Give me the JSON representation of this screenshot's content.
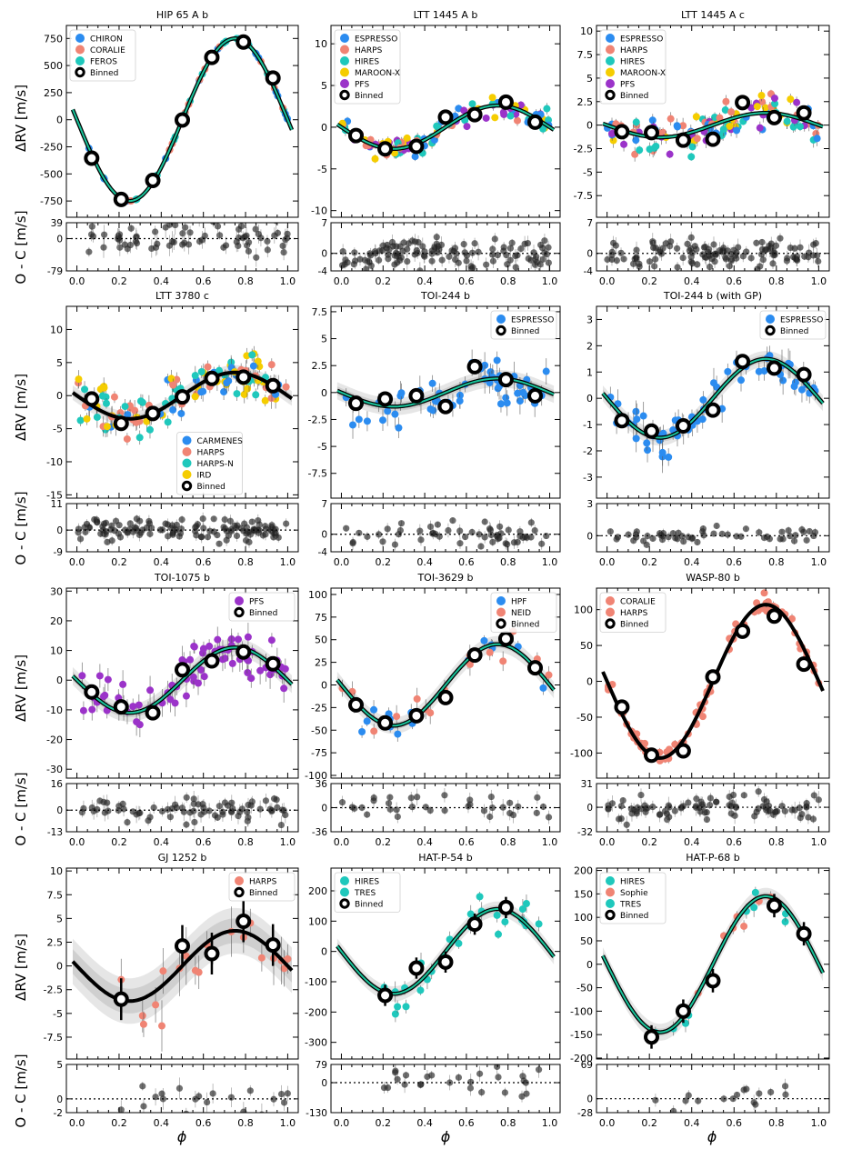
{
  "figure": {
    "y_label_top": "ΔRV [m/s]",
    "y_label_res": "O - C [m/s]",
    "x_label": "ϕ"
  },
  "colors": {
    "CHIRON": "#2b8cf0",
    "CORALIE": "#f08474",
    "FEROS": "#1fc8bc",
    "ESPRESSO": "#2b8cf0",
    "HARPS": "#f08474",
    "HIRES": "#1fc8bc",
    "MAROON-X": "#f5cd00",
    "PFS": "#9b33c9",
    "CARMENES": "#2b8cf0",
    "HARPS-N": "#1fc8bc",
    "IRD": "#f5cd00",
    "HPF": "#2b8cf0",
    "NEID": "#f08474",
    "TRES": "#1fc8bc",
    "Sophie": "#f08474",
    "model_line": "#000000",
    "model_fill": "#19c39a"
  },
  "chart_data": [
    {
      "type": "scatter",
      "title": "HIP 65 A b",
      "K": 750,
      "phase": 0.5,
      "model": "thin",
      "bands": [
        0,
        0
      ],
      "ylim": [
        -900,
        870
      ],
      "yticks": [
        -750,
        -500,
        -250,
        0,
        250,
        500,
        750
      ],
      "rlim": [
        -79,
        39
      ],
      "rticks": [
        -79,
        0,
        39
      ],
      "instruments": [
        "CHIRON",
        "CORALIE",
        "FEROS"
      ],
      "legend": [
        "CHIRON",
        "CORALIE",
        "FEROS",
        "Binned"
      ],
      "legend_loc": "top-left",
      "binned": [
        {
          "x": 0.07,
          "y": -355
        },
        {
          "x": 0.21,
          "y": -735
        },
        {
          "x": 0.36,
          "y": -560
        },
        {
          "x": 0.5,
          "y": -2
        },
        {
          "x": 0.64,
          "y": 575
        },
        {
          "x": 0.79,
          "y": 717
        },
        {
          "x": 0.93,
          "y": 385
        }
      ],
      "scatter": 0.03,
      "errbar": 0.02,
      "res_scatter": 30,
      "npts": 70,
      "seed": 11
    },
    {
      "type": "scatter",
      "title": "LTT 1445 A b",
      "K": 2.6,
      "phase": 0.5,
      "model": "thin",
      "bands": [
        0,
        0
      ],
      "ylim": [
        -10.8,
        12.2
      ],
      "yticks": [
        -10,
        -5,
        0,
        5,
        10
      ],
      "rlim": [
        -4,
        7
      ],
      "rticks": [
        -4,
        0,
        7
      ],
      "instruments": [
        "ESPRESSO",
        "HARPS",
        "HIRES",
        "MAROON-X",
        "PFS"
      ],
      "legend": [
        "ESPRESSO",
        "HARPS",
        "HIRES",
        "MAROON-X",
        "PFS",
        "Binned"
      ],
      "legend_loc": "top-left",
      "binned": [
        {
          "x": 0.07,
          "y": -1
        },
        {
          "x": 0.21,
          "y": -2.6
        },
        {
          "x": 0.36,
          "y": -2.3
        },
        {
          "x": 0.5,
          "y": 1.2
        },
        {
          "x": 0.64,
          "y": 1.5
        },
        {
          "x": 0.79,
          "y": 3
        },
        {
          "x": 0.93,
          "y": 0.6
        }
      ],
      "scatter": 0.9,
      "errbar": 0.5,
      "res_scatter": 2.2,
      "npts": 120,
      "seed": 22
    },
    {
      "type": "scatter",
      "title": "LTT 1445 A c",
      "K": 1.3,
      "phase": 0.5,
      "model": "thin",
      "bands": [
        0,
        0
      ],
      "ylim": [
        -9.8,
        10.6
      ],
      "yticks": [
        -7.5,
        -5,
        -2.5,
        0,
        2.5,
        5,
        7.5,
        10
      ],
      "rlim": [
        -4,
        7
      ],
      "rticks": [
        -4,
        0,
        7
      ],
      "instruments": [
        "ESPRESSO",
        "HARPS",
        "HIRES",
        "MAROON-X",
        "PFS"
      ],
      "legend": [
        "ESPRESSO",
        "HARPS",
        "HIRES",
        "MAROON-X",
        "PFS",
        "Binned"
      ],
      "legend_loc": "top-left",
      "binned": [
        {
          "x": 0.07,
          "y": -0.7
        },
        {
          "x": 0.21,
          "y": -0.8
        },
        {
          "x": 0.36,
          "y": -1.6
        },
        {
          "x": 0.5,
          "y": -1.5
        },
        {
          "x": 0.64,
          "y": 2.4
        },
        {
          "x": 0.79,
          "y": 0.8
        },
        {
          "x": 0.93,
          "y": 1.3
        }
      ],
      "scatter": 1.3,
      "errbar": 0.6,
      "res_scatter": 2.2,
      "npts": 120,
      "seed": 33
    },
    {
      "type": "scatter",
      "title": "LTT 3780 c",
      "K": 3.5,
      "phase": 0.5,
      "model": "thick",
      "bands": [
        0.5,
        1.1
      ],
      "ylim": [
        -15.5,
        13.5
      ],
      "yticks": [
        -15,
        -10,
        -5,
        0,
        5,
        10
      ],
      "rlim": [
        -9,
        11
      ],
      "rticks": [
        -9,
        0,
        11
      ],
      "instruments": [
        "CARMENES",
        "HARPS",
        "HARPS-N",
        "IRD"
      ],
      "legend": [
        "CARMENES",
        "HARPS",
        "HARPS-N",
        "IRD",
        "Binned"
      ],
      "legend_loc": "bottom-center",
      "binned": [
        {
          "x": 0.07,
          "y": -0.5
        },
        {
          "x": 0.21,
          "y": -4.2
        },
        {
          "x": 0.36,
          "y": -2.7
        },
        {
          "x": 0.5,
          "y": -0.2
        },
        {
          "x": 0.64,
          "y": 2.6
        },
        {
          "x": 0.79,
          "y": 2.8
        },
        {
          "x": 0.93,
          "y": 1.5
        }
      ],
      "scatter": 2.3,
      "errbar": 1.2,
      "res_scatter": 3,
      "npts": 130,
      "seed": 44
    },
    {
      "type": "scatter",
      "title": "TOI-244 b",
      "K": 1.3,
      "phase": 0.5,
      "model": "thin",
      "bands": [
        0.4,
        0.8
      ],
      "ylim": [
        -9.8,
        8
      ],
      "yticks": [
        -7.5,
        -5,
        -2.5,
        0,
        2.5,
        5,
        7.5
      ],
      "rlim": [
        -4,
        7
      ],
      "rticks": [
        -4,
        0,
        7
      ],
      "instruments": [
        "ESPRESSO"
      ],
      "legend": [
        "ESPRESSO",
        "Binned"
      ],
      "legend_loc": "top-right",
      "binned": [
        {
          "x": 0.07,
          "y": -1
        },
        {
          "x": 0.21,
          "y": -0.6
        },
        {
          "x": 0.36,
          "y": -0.3
        },
        {
          "x": 0.5,
          "y": -1.3
        },
        {
          "x": 0.64,
          "y": 2.4
        },
        {
          "x": 0.79,
          "y": 1.2
        },
        {
          "x": 0.93,
          "y": -0.3
        }
      ],
      "scatter": 1.6,
      "errbar": 1,
      "res_scatter": 1.8,
      "npts": 55,
      "seed": 55
    },
    {
      "type": "scatter",
      "title": "TOI-244 b (with GP)",
      "K": 1.5,
      "phase": 0.5,
      "model": "thin",
      "bands": [
        0.15,
        0.3
      ],
      "ylim": [
        -3.8,
        3.5
      ],
      "yticks": [
        -3,
        -2,
        -1,
        0,
        1,
        2,
        3
      ],
      "rlim": [
        -1.5,
        3
      ],
      "rticks": [
        0,
        3
      ],
      "instruments": [
        "ESPRESSO"
      ],
      "legend": [
        "ESPRESSO",
        "Binned"
      ],
      "legend_loc": "top-right",
      "binned": [
        {
          "x": 0.07,
          "y": -0.85
        },
        {
          "x": 0.21,
          "y": -1.25
        },
        {
          "x": 0.36,
          "y": -1.05
        },
        {
          "x": 0.5,
          "y": -0.45
        },
        {
          "x": 0.64,
          "y": 1.4
        },
        {
          "x": 0.79,
          "y": 1.15
        },
        {
          "x": 0.93,
          "y": 0.9
        }
      ],
      "scatter": 0.45,
      "errbar": 0.45,
      "res_scatter": 0.5,
      "npts": 55,
      "seed": 66
    },
    {
      "type": "scatter",
      "title": "TOI-1075 b",
      "K": 11,
      "phase": 0.5,
      "model": "thin",
      "bands": [
        1.5,
        3
      ],
      "ylim": [
        -33,
        31
      ],
      "yticks": [
        -30,
        -20,
        -10,
        0,
        10,
        20,
        30
      ],
      "rlim": [
        -13,
        16
      ],
      "rticks": [
        -13,
        0,
        16
      ],
      "instruments": [
        "PFS"
      ],
      "legend": [
        "PFS",
        "Binned"
      ],
      "legend_loc": "top-right",
      "binned": [
        {
          "x": 0.07,
          "y": -4
        },
        {
          "x": 0.21,
          "y": -9
        },
        {
          "x": 0.36,
          "y": -11
        },
        {
          "x": 0.5,
          "y": 3.5
        },
        {
          "x": 0.64,
          "y": 6.5
        },
        {
          "x": 0.79,
          "y": 9.5
        },
        {
          "x": 0.93,
          "y": 5.5
        }
      ],
      "scatter": 5,
      "errbar": 3.5,
      "res_scatter": 6,
      "npts": 75,
      "seed": 77
    },
    {
      "type": "scatter",
      "title": "TOI-3629 b",
      "K": 45,
      "phase": 0.5,
      "model": "thin",
      "bands": [
        4,
        9
      ],
      "ylim": [
        -103,
        107
      ],
      "yticks": [
        -100,
        -75,
        -50,
        -25,
        0,
        25,
        50,
        75,
        100
      ],
      "rlim": [
        -36,
        36
      ],
      "rticks": [
        -36,
        0,
        36
      ],
      "instruments": [
        "HPF",
        "NEID"
      ],
      "legend": [
        "HPF",
        "NEID",
        "Binned"
      ],
      "legend_loc": "top-right",
      "binned": [
        {
          "x": 0.07,
          "y": -22
        },
        {
          "x": 0.21,
          "y": -42
        },
        {
          "x": 0.36,
          "y": -34
        },
        {
          "x": 0.5,
          "y": -14
        },
        {
          "x": 0.64,
          "y": 33
        },
        {
          "x": 0.79,
          "y": 51
        },
        {
          "x": 0.93,
          "y": 19
        }
      ],
      "scatter": 13,
      "errbar": 9,
      "res_scatter": 14,
      "npts": 35,
      "seed": 88
    },
    {
      "type": "scatter",
      "title": "WASP-80 b",
      "K": 107,
      "phase": 0.5,
      "model": "thick",
      "bands": [
        0,
        0
      ],
      "ylim": [
        -135,
        130
      ],
      "yticks": [
        -100,
        -50,
        0,
        50,
        100
      ],
      "rlim": [
        -32,
        31
      ],
      "rticks": [
        -32,
        0,
        31
      ],
      "instruments": [
        "CORALIE",
        "HARPS"
      ],
      "legend": [
        "CORALIE",
        "HARPS",
        "Binned"
      ],
      "legend_loc": "top-left",
      "binned": [
        {
          "x": 0.07,
          "y": -36
        },
        {
          "x": 0.21,
          "y": -103
        },
        {
          "x": 0.36,
          "y": -97
        },
        {
          "x": 0.5,
          "y": 6
        },
        {
          "x": 0.64,
          "y": 70
        },
        {
          "x": 0.79,
          "y": 91
        },
        {
          "x": 0.93,
          "y": 24
        }
      ],
      "scatter": 8,
      "errbar": 5,
      "res_scatter": 13,
      "npts": 90,
      "seed": 99
    },
    {
      "type": "scatter",
      "title": "GJ 1252 b",
      "K": 3.7,
      "phase": 0.5,
      "model": "thick",
      "bands": [
        1.3,
        2.4
      ],
      "ylim": [
        -9.8,
        10.3
      ],
      "yticks": [
        -7.5,
        -5,
        -2.5,
        0,
        2.5,
        5,
        7.5,
        10
      ],
      "rlim": [
        -2,
        5
      ],
      "rticks": [
        -2,
        0,
        5
      ],
      "instruments": [
        "HARPS"
      ],
      "legend": [
        "HARPS",
        "Binned"
      ],
      "legend_loc": "top-right",
      "binned": [
        {
          "x": 0.21,
          "y": -3.5
        },
        {
          "x": 0.5,
          "y": 2.1
        },
        {
          "x": 0.64,
          "y": 1.3
        },
        {
          "x": 0.79,
          "y": 4.7
        },
        {
          "x": 0.93,
          "y": 2.2
        }
      ],
      "binned_err": 2.2,
      "scatter": 2,
      "errbar": 2.2,
      "res_scatter": 1.8,
      "npts": 20,
      "seed": 111,
      "xmin": 0.18
    },
    {
      "type": "scatter",
      "title": "HAT-P-54 b",
      "K": 140,
      "phase": 0.5,
      "model": "thin",
      "bands": [
        12,
        25
      ],
      "ylim": [
        -355,
        275
      ],
      "yticks": [
        -300,
        -200,
        -100,
        0,
        100,
        200
      ],
      "rlim": [
        -130,
        79
      ],
      "rticks": [
        -130,
        0,
        79
      ],
      "instruments": [
        "HIRES",
        "TRES"
      ],
      "legend": [
        "HIRES",
        "TRES",
        "Binned"
      ],
      "legend_loc": "top-left",
      "binned": [
        {
          "x": 0.21,
          "y": -145
        },
        {
          "x": 0.36,
          "y": -55
        },
        {
          "x": 0.5,
          "y": -35
        },
        {
          "x": 0.64,
          "y": 90
        },
        {
          "x": 0.79,
          "y": 145
        }
      ],
      "binned_err": 35,
      "scatter": 45,
      "errbar": 25,
      "res_scatter": 45,
      "npts": 26,
      "seed": 122,
      "xmin": 0.18
    },
    {
      "type": "scatter",
      "title": "HAT-P-68 b",
      "K": 145,
      "phase": 0.5,
      "model": "thin",
      "bands": [
        8,
        18
      ],
      "ylim": [
        -202,
        205
      ],
      "yticks": [
        -200,
        -150,
        -100,
        -50,
        0,
        50,
        100,
        150,
        200
      ],
      "rlim": [
        -28,
        69
      ],
      "rticks": [
        -28,
        0,
        69
      ],
      "instruments": [
        "HIRES",
        "Sophie",
        "TRES"
      ],
      "legend": [
        "HIRES",
        "Sophie",
        "TRES",
        "Binned"
      ],
      "legend_loc": "top-left",
      "binned": [
        {
          "x": 0.21,
          "y": -155
        },
        {
          "x": 0.36,
          "y": -100
        },
        {
          "x": 0.5,
          "y": -35
        },
        {
          "x": 0.79,
          "y": 125
        },
        {
          "x": 0.93,
          "y": 65
        }
      ],
      "binned_err": 25,
      "scatter": 20,
      "errbar": 15,
      "res_scatter": 18,
      "npts": 16,
      "seed": 133,
      "xmin": 0.2
    }
  ]
}
